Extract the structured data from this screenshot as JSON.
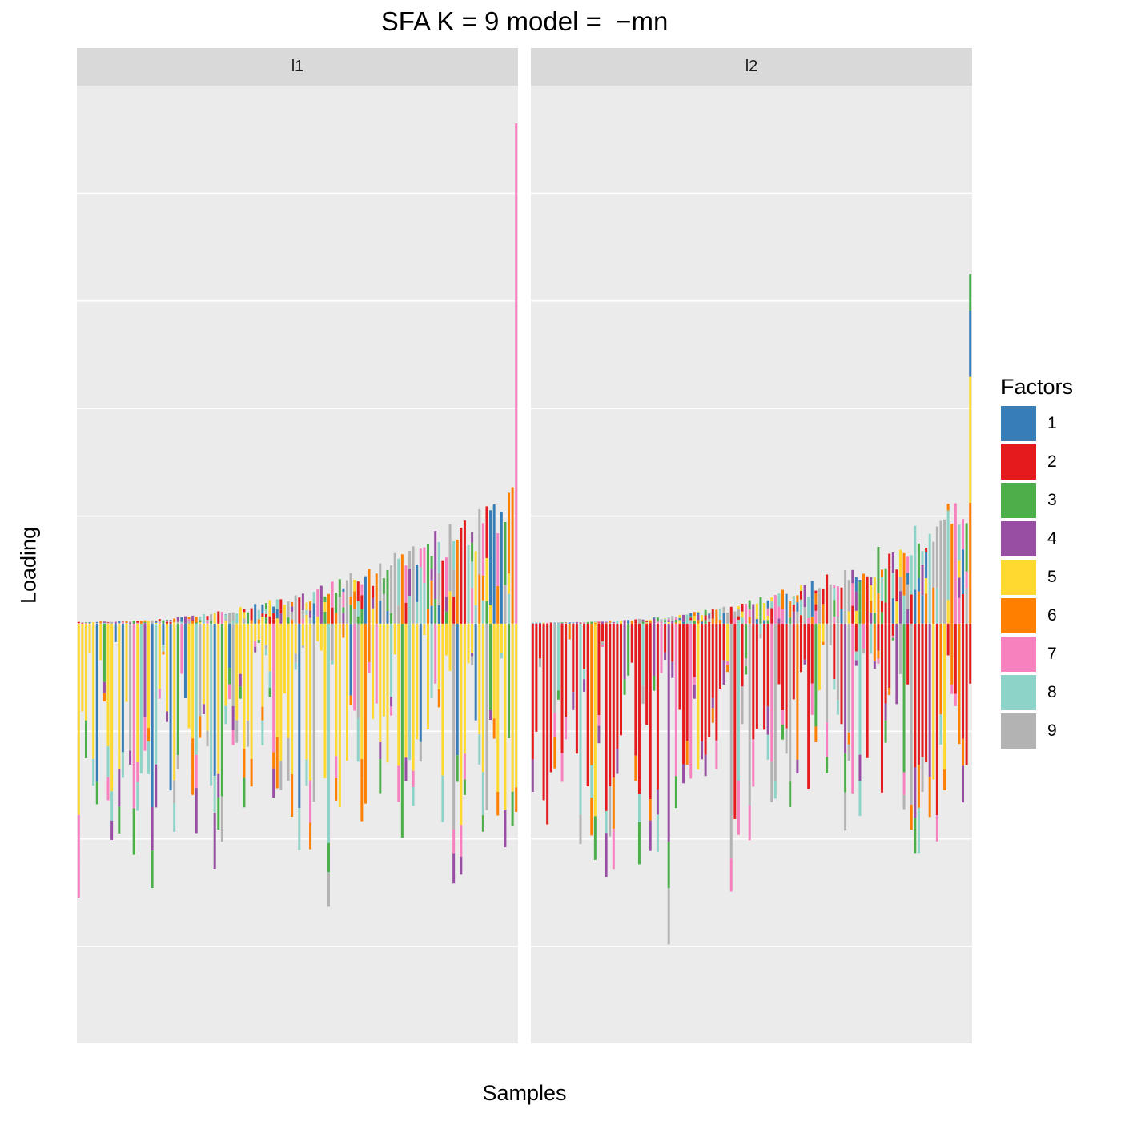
{
  "title": "SFA K = 9 model =  −mn",
  "xlabel": "Samples",
  "ylabel": "Loading",
  "legend_title": "Factors",
  "factors": [
    {
      "label": "1",
      "color": "#377EB8"
    },
    {
      "label": "2",
      "color": "#E41A1C"
    },
    {
      "label": "3",
      "color": "#4DAF4A"
    },
    {
      "label": "4",
      "color": "#984EA3"
    },
    {
      "label": "5",
      "color": "#FFD92F"
    },
    {
      "label": "6",
      "color": "#FF7F00"
    },
    {
      "label": "7",
      "color": "#F781BF"
    },
    {
      "label": "8",
      "color": "#8DD3C7"
    },
    {
      "label": "9",
      "color": "#B3B3B3"
    }
  ],
  "panels": [
    {
      "label": "l1"
    },
    {
      "label": "l2"
    }
  ],
  "chart_data": {
    "type": "bar",
    "stacked": true,
    "facets": [
      "l1",
      "l2"
    ],
    "ylim": [
      -7.8,
      10
    ],
    "y_ticks": [
      -6,
      -4,
      -2,
      0,
      2,
      4,
      6,
      8
    ],
    "y_tick_labels_shown": false,
    "samples_per_panel": 120,
    "series_names": [
      "1",
      "2",
      "3",
      "4",
      "5",
      "6",
      "7",
      "8",
      "9"
    ],
    "note_values": "stacked factor loadings per sample; l1 dominated by factor 5 (negative) and mixed positive factors; l2 dominated by factor 2 (negative)"
  }
}
